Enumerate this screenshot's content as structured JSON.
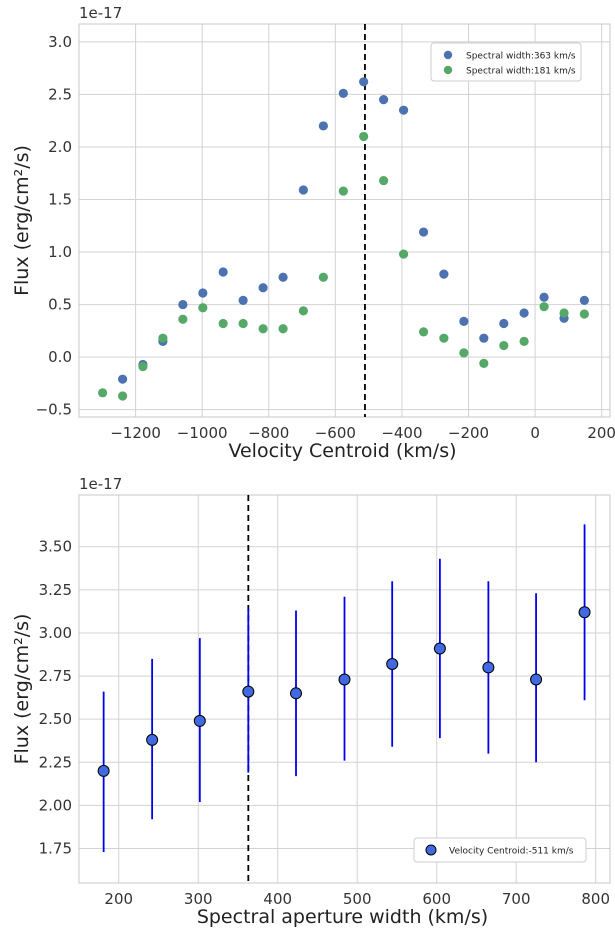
{
  "colors": {
    "blue": "#4c72b0",
    "green": "#55a868",
    "errorbar": "#0000ee",
    "marker_fill": "#4169e1",
    "grid": "#d3d3d3",
    "refline": "#000000"
  },
  "chart_data": [
    {
      "type": "scatter",
      "xlabel": "Velocity Centroid (km/s)",
      "ylabel": "Flux (erg/cm²/s)",
      "y_offset_label": "1e-17",
      "xlim": [
        -1370,
        225
      ],
      "ylim": [
        -0.57,
        3.17
      ],
      "xticks": [
        -1200,
        -1000,
        -800,
        -600,
        -400,
        -200,
        0,
        200
      ],
      "xtick_labels": [
        "−1200",
        "−1000",
        "−800",
        "−600",
        "−400",
        "−200",
        "0",
        "200"
      ],
      "yticks": [
        -0.5,
        0,
        0.5,
        1,
        1.5,
        2,
        2.5,
        3
      ],
      "ytick_labels": [
        "−0.5",
        "0.0",
        "0.5",
        "1.0",
        "1.5",
        "2.0",
        "2.5",
        "3.0"
      ],
      "grid": true,
      "legend_position": "top-right",
      "vline_x": -511,
      "series": [
        {
          "name": "Spectral width:363 km/s",
          "color": "blue",
          "x": [
            -1239,
            -1178,
            -1118,
            -1058,
            -998,
            -937,
            -877,
            -817,
            -757,
            -696,
            -636,
            -576,
            -515,
            -455,
            -395,
            -335,
            -274,
            -214,
            -154,
            -94,
            -33,
            27,
            87,
            148
          ],
          "y": [
            -0.21,
            -0.07,
            0.15,
            0.5,
            0.61,
            0.81,
            0.54,
            0.66,
            0.76,
            1.59,
            2.2,
            2.51,
            2.62,
            2.45,
            2.35,
            1.19,
            0.79,
            0.34,
            0.18,
            0.32,
            0.42,
            0.57,
            0.37,
            0.54
          ]
        },
        {
          "name": "Spectral width:181 km/s",
          "color": "green",
          "x": [
            -1299,
            -1239,
            -1178,
            -1118,
            -1058,
            -998,
            -937,
            -877,
            -817,
            -757,
            -696,
            -636,
            -576,
            -515,
            -455,
            -395,
            -335,
            -274,
            -214,
            -154,
            -94,
            -33,
            27,
            87,
            148
          ],
          "y": [
            -0.34,
            -0.37,
            -0.09,
            0.18,
            0.36,
            0.47,
            0.32,
            0.32,
            0.27,
            0.27,
            0.44,
            0.76,
            1.58,
            2.1,
            1.68,
            0.98,
            0.24,
            0.18,
            0.04,
            -0.06,
            0.11,
            0.15,
            0.48,
            0.42,
            0.41
          ]
        }
      ]
    },
    {
      "type": "scatter",
      "xlabel": "Spectral aperture width (km/s)",
      "ylabel": "Flux (erg/cm²/s)",
      "y_offset_label": "1e-17",
      "xlim": [
        150,
        818
      ],
      "ylim": [
        1.55,
        3.8
      ],
      "xticks": [
        200,
        300,
        400,
        500,
        600,
        700,
        800
      ],
      "xtick_labels": [
        "200",
        "300",
        "400",
        "500",
        "600",
        "700",
        "800"
      ],
      "yticks": [
        1.75,
        2,
        2.25,
        2.5,
        2.75,
        3,
        3.25,
        3.5
      ],
      "ytick_labels": [
        "1.75",
        "2.00",
        "2.25",
        "2.50",
        "2.75",
        "3.00",
        "3.25",
        "3.50"
      ],
      "grid": true,
      "legend_position": "bottom-right",
      "vline_x": 363,
      "series": [
        {
          "name": "Velocity Centroid:-511 km/s",
          "color": "marker_fill",
          "x": [
            181,
            242,
            302,
            363,
            423,
            484,
            544,
            604,
            665,
            725,
            786
          ],
          "y": [
            2.2,
            2.38,
            2.49,
            2.66,
            2.65,
            2.73,
            2.82,
            2.91,
            2.8,
            2.73,
            3.12
          ],
          "yerr_low": [
            1.73,
            1.92,
            2.02,
            2.19,
            2.17,
            2.26,
            2.34,
            2.39,
            2.3,
            2.25,
            2.61
          ],
          "yerr_high": [
            2.66,
            2.85,
            2.97,
            3.14,
            3.13,
            3.21,
            3.3,
            3.43,
            3.3,
            3.23,
            3.63
          ]
        }
      ]
    }
  ]
}
